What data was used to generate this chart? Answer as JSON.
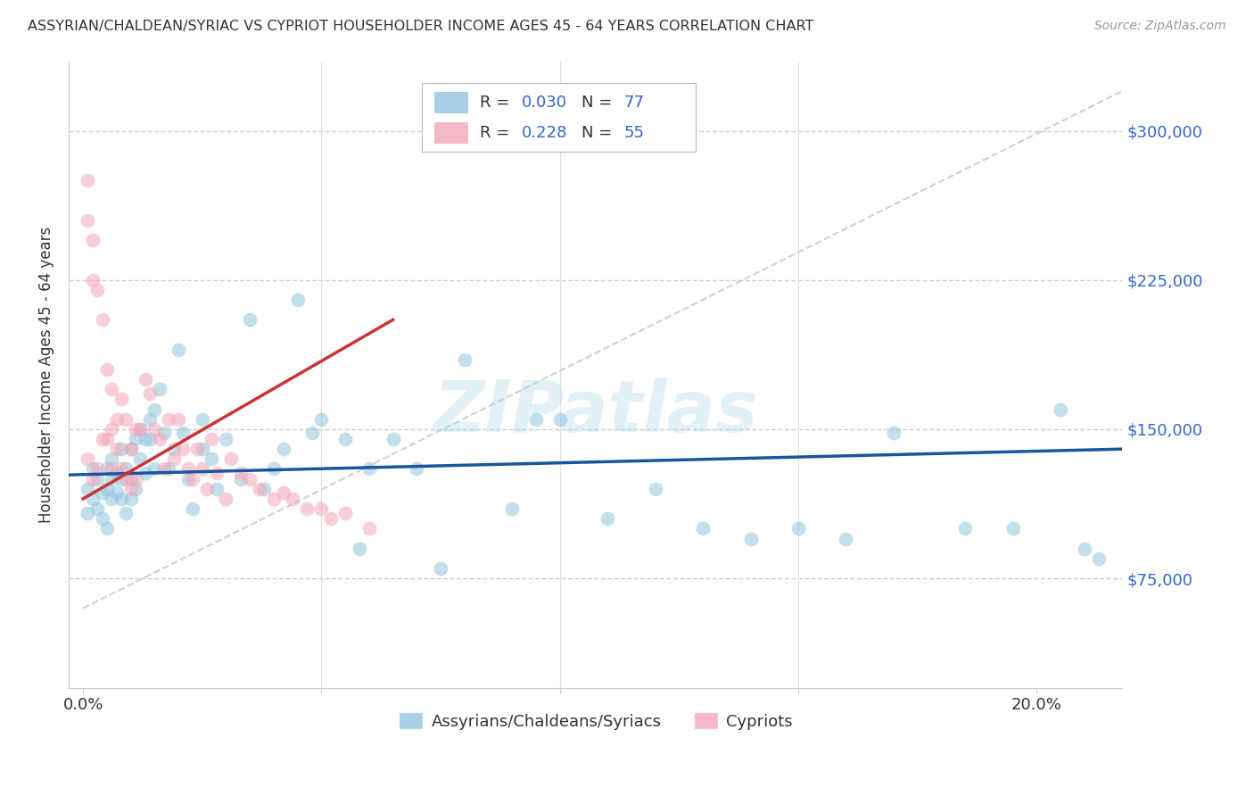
{
  "title": "ASSYRIAN/CHALDEAN/SYRIAC VS CYPRIOT HOUSEHOLDER INCOME AGES 45 - 64 YEARS CORRELATION CHART",
  "source": "Source: ZipAtlas.com",
  "ylabel": "Householder Income Ages 45 - 64 years",
  "legend_label1": "Assyrians/Chaldeans/Syriacs",
  "legend_label2": "Cypriots",
  "R1": 0.03,
  "N1": 77,
  "R2": 0.228,
  "N2": 55,
  "color_blue": "#92c5de",
  "color_pink": "#f4a6b8",
  "color_line_blue": "#1a56a0",
  "color_line_pink": "#cc3333",
  "xlim": [
    -0.003,
    0.218
  ],
  "ylim": [
    20000,
    335000
  ],
  "xlabel_ticks": [
    0.0,
    0.05,
    0.1,
    0.15,
    0.2
  ],
  "ylabel_ticks": [
    75000,
    150000,
    225000,
    300000
  ],
  "blue_x": [
    0.001,
    0.001,
    0.002,
    0.002,
    0.003,
    0.003,
    0.004,
    0.004,
    0.005,
    0.005,
    0.005,
    0.006,
    0.006,
    0.006,
    0.007,
    0.007,
    0.008,
    0.008,
    0.008,
    0.009,
    0.009,
    0.01,
    0.01,
    0.01,
    0.011,
    0.011,
    0.012,
    0.012,
    0.013,
    0.013,
    0.014,
    0.014,
    0.015,
    0.015,
    0.016,
    0.017,
    0.018,
    0.019,
    0.02,
    0.021,
    0.022,
    0.023,
    0.025,
    0.025,
    0.027,
    0.028,
    0.03,
    0.033,
    0.035,
    0.038,
    0.04,
    0.042,
    0.045,
    0.048,
    0.05,
    0.055,
    0.058,
    0.06,
    0.065,
    0.07,
    0.075,
    0.08,
    0.09,
    0.095,
    0.1,
    0.11,
    0.12,
    0.13,
    0.14,
    0.15,
    0.16,
    0.17,
    0.185,
    0.195,
    0.205,
    0.21,
    0.213
  ],
  "blue_y": [
    120000,
    108000,
    130000,
    115000,
    125000,
    110000,
    118000,
    105000,
    130000,
    120000,
    100000,
    125000,
    115000,
    135000,
    128000,
    118000,
    140000,
    125000,
    115000,
    130000,
    108000,
    140000,
    125000,
    115000,
    145000,
    120000,
    150000,
    135000,
    145000,
    128000,
    155000,
    145000,
    160000,
    130000,
    170000,
    148000,
    130000,
    140000,
    190000,
    148000,
    125000,
    110000,
    140000,
    155000,
    135000,
    120000,
    145000,
    125000,
    205000,
    120000,
    130000,
    140000,
    215000,
    148000,
    155000,
    145000,
    90000,
    130000,
    145000,
    130000,
    80000,
    185000,
    110000,
    155000,
    155000,
    105000,
    120000,
    100000,
    95000,
    100000,
    95000,
    148000,
    100000,
    100000,
    160000,
    90000,
    85000
  ],
  "pink_x": [
    0.001,
    0.001,
    0.001,
    0.002,
    0.002,
    0.002,
    0.003,
    0.003,
    0.004,
    0.004,
    0.005,
    0.005,
    0.006,
    0.006,
    0.006,
    0.007,
    0.007,
    0.008,
    0.008,
    0.009,
    0.009,
    0.01,
    0.01,
    0.011,
    0.011,
    0.012,
    0.013,
    0.014,
    0.015,
    0.016,
    0.017,
    0.018,
    0.019,
    0.02,
    0.021,
    0.022,
    0.023,
    0.024,
    0.025,
    0.026,
    0.027,
    0.028,
    0.03,
    0.031,
    0.033,
    0.035,
    0.037,
    0.04,
    0.042,
    0.044,
    0.047,
    0.05,
    0.052,
    0.055,
    0.06
  ],
  "pink_y": [
    275000,
    255000,
    135000,
    245000,
    225000,
    125000,
    220000,
    130000,
    205000,
    145000,
    180000,
    145000,
    170000,
    150000,
    130000,
    155000,
    140000,
    165000,
    130000,
    155000,
    125000,
    140000,
    120000,
    150000,
    125000,
    150000,
    175000,
    168000,
    150000,
    145000,
    130000,
    155000,
    135000,
    155000,
    140000,
    130000,
    125000,
    140000,
    130000,
    120000,
    145000,
    128000,
    115000,
    135000,
    128000,
    125000,
    120000,
    115000,
    118000,
    115000,
    110000,
    110000,
    105000,
    108000,
    100000
  ],
  "blue_line_x": [
    -0.003,
    0.218
  ],
  "blue_line_y": [
    127000,
    140000
  ],
  "pink_line_x": [
    0.0,
    0.065
  ],
  "pink_line_y": [
    115000,
    205000
  ],
  "ref_line_x": [
    0.0,
    0.218
  ],
  "ref_line_y": [
    60000,
    320000
  ]
}
